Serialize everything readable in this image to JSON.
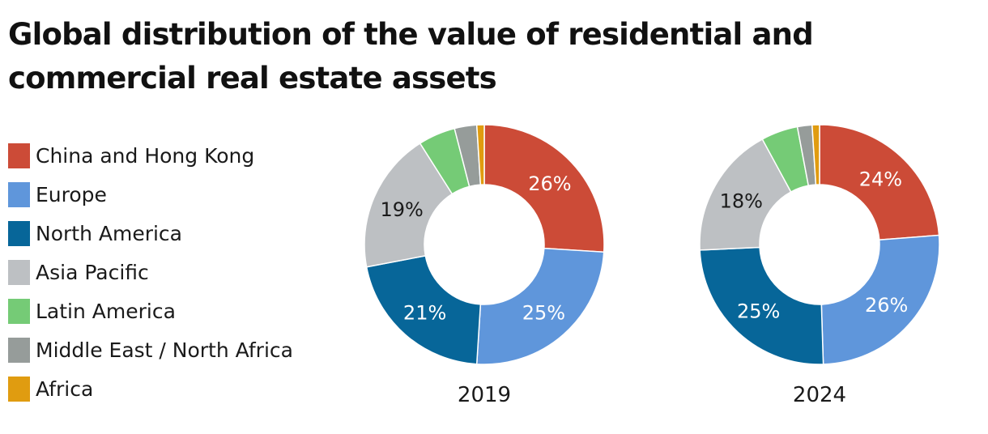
{
  "title": "Global distribution of the value of residential and commercial real estate assets",
  "colors": {
    "china": "#cc4b37",
    "europe": "#5f96db",
    "north_america": "#076699",
    "asia_pacific": "#bdc0c3",
    "latin_america": "#75cb76",
    "mena": "#969c9a",
    "africa": "#e09c10"
  },
  "legend": [
    {
      "label": "China and Hong Kong",
      "color": "#cc4b37"
    },
    {
      "label": "Europe",
      "color": "#5f96db"
    },
    {
      "label": "North America",
      "color": "#076699"
    },
    {
      "label": "Asia Pacific",
      "color": "#bdc0c3"
    },
    {
      "label": "Latin America",
      "color": "#75cb76"
    },
    {
      "label": "Middle East / North Africa",
      "color": "#969c9a"
    },
    {
      "label": "Africa",
      "color": "#e09c10"
    }
  ],
  "chart_data": [
    {
      "type": "pie",
      "variant": "donut",
      "label": "2019",
      "categories": [
        "China and Hong Kong",
        "Europe",
        "North America",
        "Asia Pacific",
        "Latin America",
        "Middle East / North Africa",
        "Africa"
      ],
      "values": [
        26,
        25,
        21,
        19,
        5,
        3,
        1
      ],
      "data_labels": [
        "26%",
        "25%",
        "21%",
        "19%",
        "",
        "",
        ""
      ]
    },
    {
      "type": "pie",
      "variant": "donut",
      "label": "2024",
      "categories": [
        "China and Hong Kong",
        "Europe",
        "North America",
        "Asia Pacific",
        "Latin America",
        "Middle East / North Africa",
        "Africa"
      ],
      "values": [
        24,
        26,
        25,
        18,
        5,
        2,
        1
      ],
      "data_labels": [
        "24%",
        "26%",
        "25%",
        "18%",
        "",
        "",
        ""
      ]
    }
  ]
}
